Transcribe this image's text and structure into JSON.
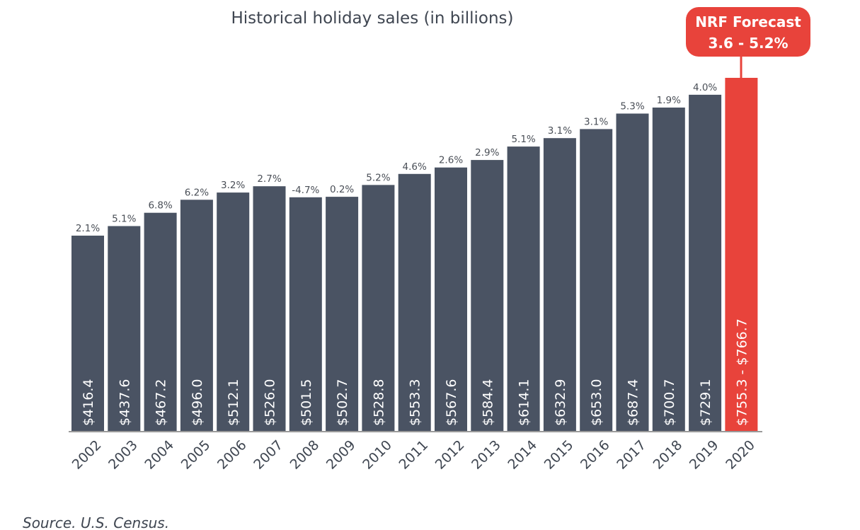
{
  "chart_data": {
    "type": "bar",
    "title": "Historical holiday sales (in billions)",
    "xlabel": "",
    "ylabel": "",
    "categories": [
      "2002",
      "2003",
      "2004",
      "2005",
      "2006",
      "2007",
      "2008",
      "2009",
      "2010",
      "2011",
      "2012",
      "2013",
      "2014",
      "2015",
      "2016",
      "2017",
      "2018",
      "2019",
      "2020"
    ],
    "values": [
      416.4,
      437.6,
      467.2,
      496.0,
      512.1,
      526.0,
      501.5,
      502.7,
      528.8,
      553.3,
      567.6,
      584.4,
      614.1,
      632.9,
      653.0,
      687.4,
      700.7,
      729.1,
      766.7
    ],
    "value_labels": [
      "$416.4",
      "$437.6",
      "$467.2",
      "$496.0",
      "$512.1",
      "$526.0",
      "$501.5",
      "$502.7",
      "$528.8",
      "$553.3",
      "$567.6",
      "$584.4",
      "$614.1",
      "$632.9",
      "$653.0",
      "$687.4",
      "$700.7",
      "$729.1",
      "$755.3 - $766.7"
    ],
    "growth_labels": [
      "2.1%",
      "5.1%",
      "6.8%",
      "6.2%",
      "3.2%",
      "2.7%",
      "-4.7%",
      "0.2%",
      "5.2%",
      "4.6%",
      "2.6%",
      "2.9%",
      "5.1%",
      "3.1%",
      "3.1%",
      "5.3%",
      "1.9%",
      "4.0%",
      ""
    ],
    "forecast": {
      "year": "2020",
      "low": 755.3,
      "high": 766.7,
      "label_line1": "NRF Forecast",
      "label_line2": "3.6 - 5.2%"
    },
    "ylim": [
      0,
      766.7
    ],
    "grid": false,
    "legend": "none",
    "colors": {
      "bar": "#4a5363",
      "forecast": "#e8433b",
      "axis": "#9a9a9a",
      "text": "#3f4651"
    }
  },
  "footer": {
    "source": "Source. U.S. Census."
  }
}
